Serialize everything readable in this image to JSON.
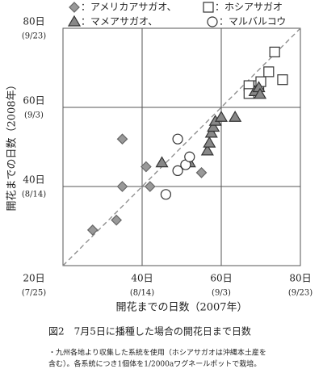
{
  "chart_data": {
    "type": "scatter",
    "xlabel": "開花までの日数（2007年）",
    "ylabel": "開花までの日数（2008年）",
    "caption": "図2　7月5日に播種した場合の開花日まで日数",
    "notes": [
      "・九州各地より収集した系統を使用（ホシアサガオは沖縄本土産を",
      "含む）。各系統につき1個体を1/2000aワグネールポットで栽培。"
    ],
    "xlim": [
      20,
      80
    ],
    "ylim": [
      20,
      80
    ],
    "xticks": [
      {
        "value": 20,
        "label": "20日",
        "sublabel": "(7/25)"
      },
      {
        "value": 40,
        "label": "40日",
        "sublabel": "(8/14)"
      },
      {
        "value": 60,
        "label": "60日",
        "sublabel": "(9/3)"
      },
      {
        "value": 80,
        "label": "80日",
        "sublabel": "(9/23)"
      }
    ],
    "yticks": [
      {
        "value": 40,
        "label": "40日",
        "sublabel": "(8/14)"
      },
      {
        "value": 60,
        "label": "60日",
        "sublabel": "(9/3)"
      },
      {
        "value": 80,
        "label": "80日",
        "sublabel": "(9/23)"
      }
    ],
    "grid": true,
    "diagonal": true,
    "series": [
      {
        "name": "：アメリカアサガオ、",
        "marker": "diamond",
        "color": "#999999",
        "x": [
          27.5,
          33.5,
          35,
          35,
          41,
          42,
          55
        ],
        "values": [
          29,
          31.5,
          40,
          52,
          45,
          40,
          43.5
        ]
      },
      {
        "name": "：ホシアサガオ",
        "marker": "square",
        "color": "#ffffff",
        "x": [
          73.5,
          72,
          75.5,
          67,
          67,
          69.5,
          70
        ],
        "values": [
          74,
          69,
          67,
          65.5,
          63.5,
          65.5,
          66.5
        ]
      },
      {
        "name": "：マメアサガオ、",
        "marker": "triangle",
        "color": "#888888",
        "x": [
          45,
          52,
          56.5,
          57,
          57.5,
          58,
          58.5,
          60,
          63.5,
          68.5,
          69.5,
          69.8
        ],
        "values": [
          46,
          46,
          49,
          51,
          53.5,
          55,
          56.5,
          57.5,
          57.5,
          64,
          65,
          63.3
        ]
      },
      {
        "name": "：マルバルコウ",
        "marker": "circle",
        "color": "#ffffff",
        "x": [
          49,
          49,
          51,
          52,
          46
        ],
        "values": [
          52,
          44,
          45.5,
          47.5,
          38
        ]
      }
    ]
  }
}
